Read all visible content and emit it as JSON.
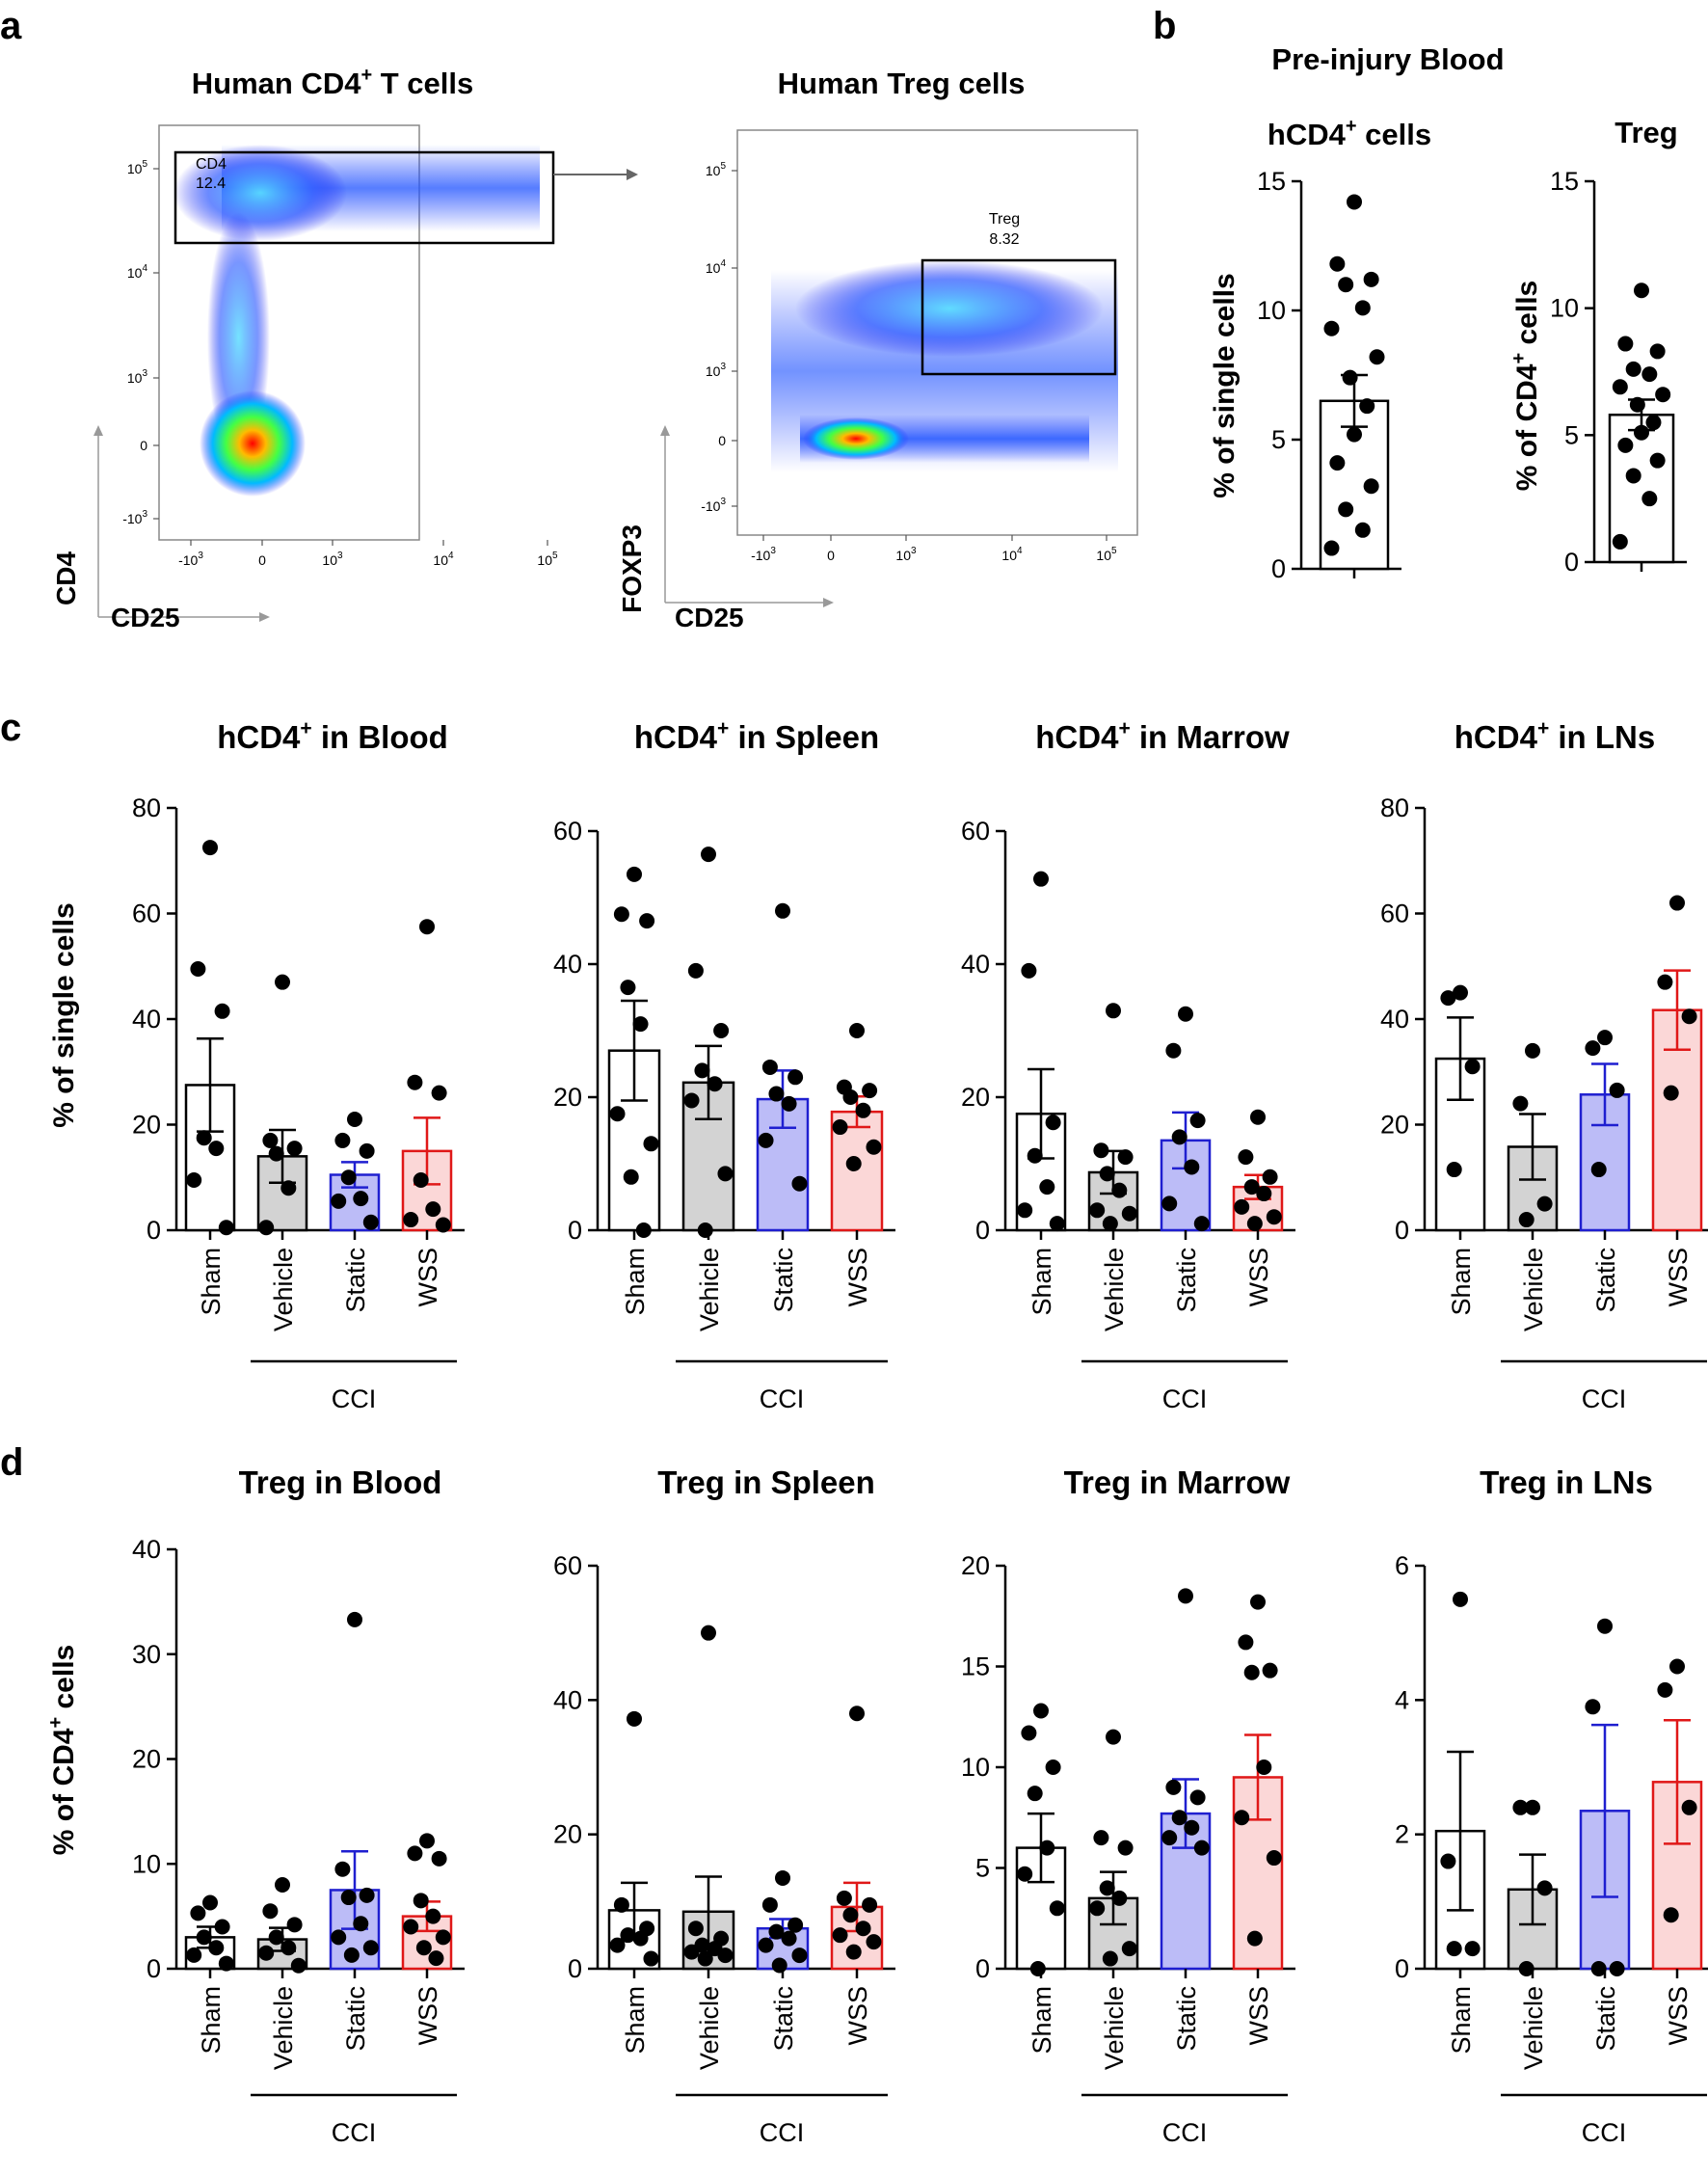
{
  "panel_labels": {
    "a": "a",
    "b": "b",
    "c": "c",
    "d": "d"
  },
  "colors": {
    "sham": "#ffffff",
    "vehicle": "#d3d3d3",
    "static": "#bcbcf7",
    "wss": "#fbd7d7",
    "sham_edge": "#000000",
    "vehicle_edge": "#000000",
    "static_edge": "#1f1fd0",
    "wss_edge": "#e01818"
  },
  "panel_a": {
    "left": {
      "title": "Human CD4",
      "title_sup": "+",
      "title_rest": " T cells",
      "y_axis": "CD4",
      "x_axis": "CD25",
      "gate_label": "CD4",
      "gate_value": "12.4",
      "y_ticks": [
        "10",
        "10",
        "10",
        "0",
        "-10"
      ],
      "y_tick_exps": [
        "5",
        "4",
        "3",
        "",
        "3"
      ],
      "x_ticks": [
        "-10",
        "0",
        "10",
        "10",
        "10"
      ],
      "x_tick_exps": [
        "3",
        "",
        "3",
        "4",
        "5"
      ]
    },
    "right": {
      "title": "Human Treg cells",
      "y_axis": "FOXP3",
      "x_axis": "CD25",
      "gate_label": "Treg",
      "gate_value": "8.32",
      "y_ticks": [
        "10",
        "10",
        "10",
        "0",
        "-10"
      ],
      "y_tick_exps": [
        "5",
        "4",
        "3",
        "",
        "3"
      ],
      "x_ticks": [
        "-10",
        "0",
        "10",
        "10",
        "10"
      ],
      "x_tick_exps": [
        "3",
        "",
        "3",
        "4",
        "5"
      ]
    }
  },
  "panel_b": {
    "title": "Pre-injury Blood",
    "sub1": "hCD4",
    "sub1_sup": "+",
    "sub1_rest": " cells",
    "sub2": "Treg",
    "ylab1": "% of single cells",
    "ylab2_pre": "% of CD4",
    "ylab2_sup": "+",
    "ylab2_rest": " cells"
  },
  "group_label": "CCI",
  "ylab_c": "% of single cells",
  "ylab_d_pre": "% of CD4",
  "ylab_d_sup": "+",
  "ylab_d_rest": " cells",
  "chart_data": [
    {
      "id": "b1",
      "type": "bar",
      "title": "hCD4+ cells",
      "ylabel": "% of single cells",
      "ylim": [
        0,
        15
      ],
      "yticks": [
        0,
        5,
        10,
        15
      ],
      "categories": [
        ""
      ],
      "values": [
        6.5
      ],
      "sem": [
        1.0
      ],
      "points": [
        [
          14.2,
          11.8,
          11.2,
          11.0,
          10.1,
          9.3,
          8.2,
          7.4,
          6.3,
          5.2,
          4.1,
          3.2,
          2.3,
          1.5,
          0.8
        ]
      ]
    },
    {
      "id": "b2",
      "type": "bar",
      "title": "Treg",
      "ylabel": "% of CD4+ cells",
      "ylim": [
        0,
        15
      ],
      "yticks": [
        0,
        5,
        10,
        15
      ],
      "categories": [
        ""
      ],
      "values": [
        5.8
      ],
      "sem": [
        0.6
      ],
      "points": [
        [
          10.7,
          8.6,
          8.3,
          7.6,
          7.4,
          6.9,
          6.6,
          6.2,
          5.5,
          5.1,
          4.6,
          4.0,
          3.4,
          2.5,
          0.8
        ]
      ]
    },
    {
      "id": "c1",
      "type": "bar",
      "title_pre": "hCD4",
      "title_sup": "+",
      "title_rest": " in Blood",
      "ylabel": "% of single cells",
      "ylim": [
        0,
        80
      ],
      "yticks": [
        0,
        20,
        40,
        60,
        80
      ],
      "categories": [
        "Sham",
        "Vehicle",
        "Static",
        "WSS"
      ],
      "values": [
        27.5,
        14.0,
        10.5,
        15.0
      ],
      "sem": [
        8.8,
        5.0,
        2.4,
        6.3
      ],
      "points": [
        [
          72.5,
          49.5,
          41.5,
          17.5,
          15.5,
          9.5,
          0.5
        ],
        [
          47.0,
          17.0,
          15.5,
          14.5,
          8.0,
          0.5
        ],
        [
          21.0,
          17.0,
          15.0,
          10.0,
          6.0,
          5.5,
          1.5
        ],
        [
          57.5,
          28.0,
          26.0,
          9.5,
          4.0,
          2.0,
          1.0
        ]
      ]
    },
    {
      "id": "c2",
      "type": "bar",
      "title_pre": "hCD4",
      "title_sup": "+",
      "title_rest": " in Spleen",
      "ylim": [
        0,
        60
      ],
      "yticks": [
        0,
        20,
        40,
        60
      ],
      "categories": [
        "Sham",
        "Vehicle",
        "Static",
        "WSS"
      ],
      "values": [
        27.0,
        22.2,
        19.7,
        17.8
      ],
      "sem": [
        7.5,
        5.5,
        4.3,
        2.3
      ],
      "points": [
        [
          53.5,
          47.5,
          46.5,
          36.5,
          31.0,
          17.5,
          13.0,
          8.0,
          0.0
        ],
        [
          56.5,
          39.0,
          30.0,
          24.0,
          22.0,
          19.5,
          8.5,
          0.0
        ],
        [
          48.0,
          24.5,
          23.0,
          20.5,
          19.0,
          13.5,
          7.0
        ],
        [
          30.0,
          21.5,
          21.0,
          20.0,
          18.0,
          15.5,
          12.5,
          10.0
        ]
      ]
    },
    {
      "id": "c3",
      "type": "bar",
      "title_pre": "hCD4",
      "title_sup": "+",
      "title_rest": " in Marrow",
      "ylim": [
        0,
        60
      ],
      "yticks": [
        0,
        20,
        40,
        60
      ],
      "categories": [
        "Sham",
        "Vehicle",
        "Static",
        "WSS"
      ],
      "values": [
        17.5,
        8.7,
        13.5,
        6.5
      ],
      "sem": [
        6.7,
        3.2,
        4.2,
        1.8
      ],
      "points": [
        [
          52.8,
          39.0,
          16.2,
          11.2,
          6.5,
          3.0,
          1.0
        ],
        [
          33.0,
          12.0,
          11.0,
          8.5,
          6.0,
          3.0,
          2.5,
          1.0
        ],
        [
          32.5,
          27.0,
          16.5,
          14.0,
          9.5,
          4.0,
          1.0
        ],
        [
          17.0,
          11.0,
          8.0,
          6.5,
          5.5,
          3.5,
          2.0,
          1.0
        ]
      ]
    },
    {
      "id": "c4",
      "type": "bar",
      "title_pre": "hCD4",
      "title_sup": "+",
      "title_rest": " in LNs",
      "ylim": [
        0,
        80
      ],
      "yticks": [
        0,
        20,
        40,
        60,
        80
      ],
      "categories": [
        "Sham",
        "Vehicle",
        "Static",
        "WSS"
      ],
      "values": [
        32.5,
        15.8,
        25.7,
        41.7
      ],
      "sem": [
        7.8,
        6.2,
        5.8,
        7.5
      ],
      "points": [
        [
          45.0,
          44.0,
          31.0,
          11.5
        ],
        [
          34.0,
          24.0,
          5.0,
          2.0
        ],
        [
          36.5,
          34.5,
          26.5,
          11.5
        ],
        [
          62.0,
          47.0,
          40.5,
          26.0
        ]
      ]
    },
    {
      "id": "d1",
      "type": "bar",
      "title": "Treg in Blood",
      "ylabel": "% of CD4+ cells",
      "ylim": [
        0,
        40
      ],
      "yticks": [
        0,
        10,
        20,
        30,
        40
      ],
      "categories": [
        "Sham",
        "Vehicle",
        "Static",
        "WSS"
      ],
      "values": [
        3.0,
        2.8,
        7.5,
        5.0
      ],
      "sem": [
        1.0,
        1.1,
        3.7,
        1.4
      ],
      "points": [
        [
          6.3,
          5.3,
          4.0,
          3.0,
          2.0,
          1.3,
          0.5
        ],
        [
          8.0,
          5.5,
          4.2,
          3.0,
          2.0,
          1.5,
          0.3
        ],
        [
          33.3,
          9.5,
          7.0,
          6.8,
          4.3,
          3.0,
          2.0,
          1.3
        ],
        [
          12.2,
          11.0,
          10.5,
          6.5,
          5.0,
          4.0,
          3.0,
          2.0,
          1.0
        ]
      ]
    },
    {
      "id": "d2",
      "type": "bar",
      "title": "Treg in Spleen",
      "ylim": [
        0,
        60
      ],
      "yticks": [
        0,
        20,
        40,
        60
      ],
      "categories": [
        "Sham",
        "Vehicle",
        "Static",
        "WSS"
      ],
      "values": [
        8.7,
        8.5,
        6.0,
        9.2
      ],
      "sem": [
        4.1,
        5.2,
        1.4,
        3.6
      ],
      "points": [
        [
          37.2,
          9.5,
          6.0,
          5.0,
          4.5,
          3.5,
          1.5
        ],
        [
          50.0,
          6.0,
          4.5,
          3.5,
          3.0,
          2.5,
          2.0,
          1.5
        ],
        [
          13.5,
          9.5,
          6.5,
          5.5,
          4.5,
          3.5,
          2.0,
          0.5
        ],
        [
          38.0,
          10.5,
          9.5,
          8.0,
          6.0,
          5.0,
          4.0,
          2.5
        ]
      ]
    },
    {
      "id": "d3",
      "type": "bar",
      "title": "Treg in Marrow",
      "ylim": [
        0,
        20
      ],
      "yticks": [
        0,
        5,
        10,
        15,
        20
      ],
      "categories": [
        "Sham",
        "Vehicle",
        "Static",
        "WSS"
      ],
      "values": [
        6.0,
        3.5,
        7.7,
        9.5
      ],
      "sem": [
        1.7,
        1.3,
        1.7,
        2.1
      ],
      "points": [
        [
          12.8,
          11.7,
          10.0,
          8.7,
          6.0,
          4.7,
          3.0,
          0.0
        ],
        [
          11.5,
          6.5,
          6.0,
          4.0,
          3.5,
          3.0,
          1.0,
          0.5
        ],
        [
          18.5,
          9.0,
          8.5,
          7.5,
          7.0,
          6.5,
          6.0
        ],
        [
          18.2,
          16.2,
          14.8,
          14.7,
          10.0,
          7.5,
          5.5,
          1.5
        ]
      ]
    },
    {
      "id": "d4",
      "type": "bar",
      "title": "Treg in LNs",
      "ylim": [
        0,
        6
      ],
      "yticks": [
        0,
        2,
        4,
        6
      ],
      "categories": [
        "Sham",
        "Vehicle",
        "Static",
        "WSS"
      ],
      "values": [
        2.05,
        1.18,
        2.35,
        2.78
      ],
      "sem": [
        1.18,
        0.52,
        1.28,
        0.92
      ],
      "points": [
        [
          5.5,
          1.6,
          0.3,
          0.3
        ],
        [
          2.4,
          2.4,
          1.2,
          0.0
        ],
        [
          5.1,
          3.9,
          0.0,
          0.0
        ],
        [
          4.5,
          4.15,
          2.4,
          0.8
        ]
      ]
    }
  ]
}
